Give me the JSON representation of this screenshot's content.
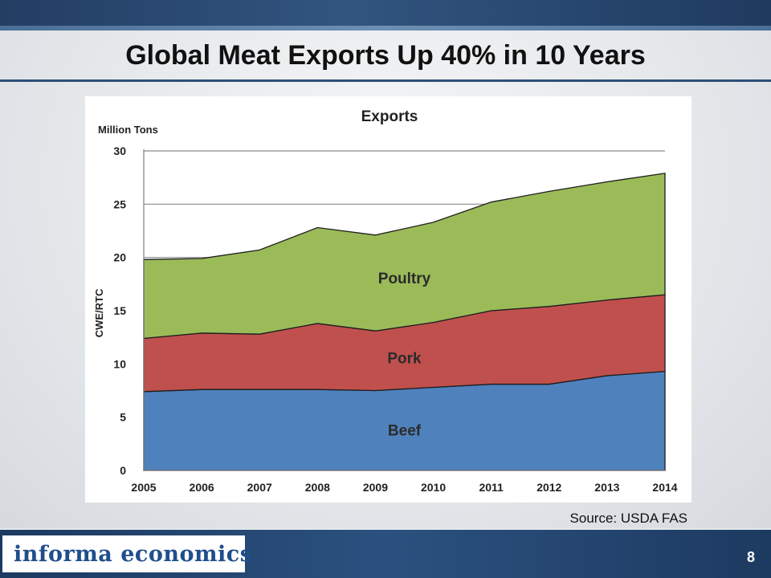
{
  "slide": {
    "title": "Global Meat Exports Up 40% in 10 Years",
    "source": "Source: USDA FAS",
    "page_number": "8",
    "logo_text": "informa economics"
  },
  "colors": {
    "beef": "#4f81bd",
    "pork": "#c0504d",
    "poultry": "#9bbb59"
  },
  "chart_data": {
    "type": "area",
    "stacked": true,
    "title": "Exports",
    "subtitle": "Million Tons",
    "ylabel": "CWE/RTC",
    "xlabel": "",
    "x": [
      "2005",
      "2006",
      "2007",
      "2008",
      "2009",
      "2010",
      "2011",
      "2012",
      "2013",
      "2014"
    ],
    "ylim": [
      0,
      30
    ],
    "yticks": [
      0,
      5,
      10,
      15,
      20,
      25,
      30
    ],
    "grid": true,
    "series": [
      {
        "name": "Beef",
        "color": "#4f81bd",
        "values": [
          7.4,
          7.6,
          7.6,
          7.6,
          7.5,
          7.8,
          8.1,
          8.1,
          8.9,
          9.3
        ]
      },
      {
        "name": "Pork",
        "color": "#c0504d",
        "values": [
          5.0,
          5.3,
          5.2,
          6.2,
          5.6,
          6.1,
          6.9,
          7.3,
          7.1,
          7.2
        ]
      },
      {
        "name": "Poultry",
        "color": "#9bbb59",
        "values": [
          7.4,
          7.0,
          7.9,
          9.0,
          9.0,
          9.4,
          10.2,
          10.8,
          11.1,
          11.4
        ]
      }
    ]
  }
}
